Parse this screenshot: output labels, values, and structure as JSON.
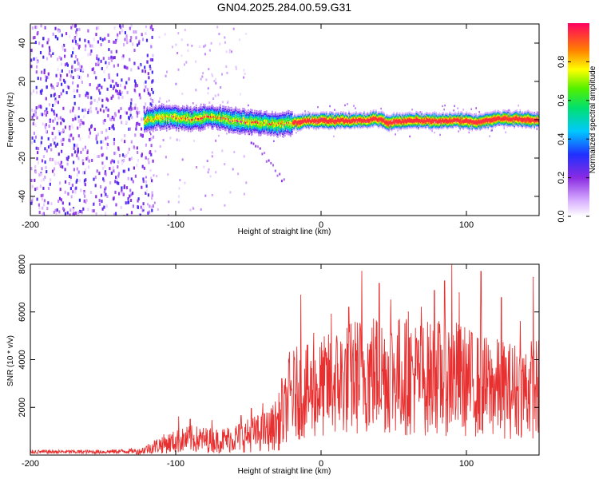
{
  "title": "GN04.2025.284.00.59.G31",
  "chart_data": [
    {
      "type": "heatmap",
      "name": "spectrogram",
      "xlabel": "Height of straight line (km)",
      "ylabel": "Frequency (Hz)",
      "xlim": [
        -200,
        150
      ],
      "ylim": [
        -50,
        50
      ],
      "xticks": [
        -200,
        -100,
        0,
        100
      ],
      "yticks": [
        -40,
        -20,
        0,
        20,
        40
      ],
      "colorbar": {
        "label": "Normalized spectral amplitude",
        "range": [
          0,
          1
        ],
        "ticks": [
          0.0,
          0.2,
          0.4,
          0.6,
          0.8
        ],
        "tick_labels": [
          "0.0",
          "0.2",
          "0.4",
          "0.6",
          "0.8"
        ]
      },
      "signal_band": {
        "x_start": -122,
        "x_end": 150,
        "center_freq": [
          [
            -122,
            0
          ],
          [
            -110,
            2
          ],
          [
            -90,
            1
          ],
          [
            -75,
            2
          ],
          [
            -60,
            0
          ],
          [
            -45,
            -1
          ],
          [
            -30,
            -2
          ],
          [
            -20,
            -1
          ],
          [
            -10,
            0
          ],
          [
            0,
            0
          ],
          [
            20,
            0
          ],
          [
            40,
            1
          ],
          [
            45,
            -1
          ],
          [
            60,
            0
          ],
          [
            80,
            0
          ],
          [
            100,
            0
          ],
          [
            105,
            -1
          ],
          [
            120,
            1
          ],
          [
            140,
            1
          ],
          [
            150,
            0
          ]
        ],
        "peak_amplitude_range": [
          0.6,
          0.95
        ]
      },
      "noise_region": {
        "x_start": -200,
        "x_end": -122,
        "amplitude": 0.15
      }
    },
    {
      "type": "line",
      "name": "snr",
      "xlabel": "Height of straight line (km)",
      "ylabel": "SNR (10 * v/v)",
      "xlim": [
        -200,
        150
      ],
      "ylim": [
        0,
        8000
      ],
      "xticks": [
        -200,
        -100,
        0,
        100
      ],
      "yticks": [
        2000,
        4000,
        6000,
        8000
      ],
      "color": "#e83030",
      "envelope": [
        [
          -200,
          150
        ],
        [
          -150,
          150
        ],
        [
          -125,
          200
        ],
        [
          -110,
          600
        ],
        [
          -90,
          900
        ],
        [
          -70,
          800
        ],
        [
          -50,
          1100
        ],
        [
          -35,
          1400
        ],
        [
          -25,
          2200
        ],
        [
          -22,
          3000
        ],
        [
          -15,
          3200
        ],
        [
          -5,
          3200
        ],
        [
          0,
          3400
        ],
        [
          10,
          3700
        ],
        [
          20,
          3900
        ],
        [
          30,
          4200
        ],
        [
          50,
          4100
        ],
        [
          70,
          3900
        ],
        [
          90,
          4000
        ],
        [
          110,
          3500
        ],
        [
          130,
          3300
        ],
        [
          150,
          3400
        ]
      ],
      "peaks": [
        [
          -98,
          1600
        ],
        [
          -90,
          1500
        ],
        [
          -75,
          1450
        ],
        [
          -55,
          1650
        ],
        [
          -48,
          1950
        ],
        [
          -40,
          2150
        ],
        [
          -27,
          3200
        ],
        [
          -22,
          3900
        ],
        [
          -14,
          6700
        ],
        [
          -5,
          5100
        ],
        [
          7,
          5900
        ],
        [
          19,
          6200
        ],
        [
          28,
          7700
        ],
        [
          40,
          7200
        ],
        [
          48,
          6500
        ],
        [
          60,
          6000
        ],
        [
          69,
          6200
        ],
        [
          78,
          6900
        ],
        [
          85,
          7300
        ],
        [
          90,
          8000
        ],
        [
          95,
          6800
        ],
        [
          110,
          7700
        ],
        [
          124,
          6600
        ],
        [
          137,
          5600
        ],
        [
          146,
          7450
        ]
      ]
    }
  ]
}
